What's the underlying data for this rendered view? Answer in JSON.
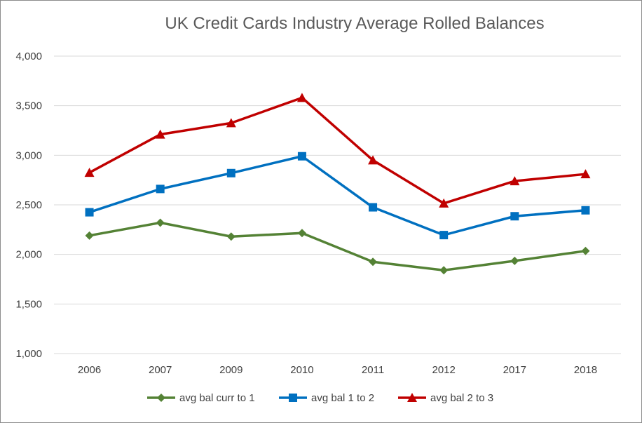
{
  "chart_data": {
    "type": "line",
    "title": "UK Credit Cards Industry Average Rolled Balances",
    "xlabel": "",
    "ylabel": "",
    "categories": [
      "2006",
      "2007",
      "2009",
      "2010",
      "2011",
      "2012",
      "2017",
      "2018"
    ],
    "ylim": [
      1000,
      4000
    ],
    "yticks": [
      1000,
      1500,
      2000,
      2500,
      3000,
      3500,
      4000
    ],
    "ytick_labels": [
      "1,000",
      "1,500",
      "2,000",
      "2,500",
      "3,000",
      "3,500",
      "4,000"
    ],
    "grid": true,
    "legend_position": "bottom",
    "series": [
      {
        "name": "avg bal curr to 1",
        "color": "#548235",
        "marker": "diamond",
        "values": [
          2190,
          2320,
          2180,
          2215,
          1925,
          1840,
          1935,
          2035
        ]
      },
      {
        "name": "avg bal 1 to 2",
        "color": "#0070c0",
        "marker": "square",
        "values": [
          2425,
          2660,
          2820,
          2990,
          2475,
          2195,
          2385,
          2445
        ]
      },
      {
        "name": "avg bal 2 to 3",
        "color": "#c00000",
        "marker": "triangle",
        "values": [
          2825,
          3210,
          3325,
          3580,
          2950,
          2515,
          2740,
          2810
        ]
      }
    ]
  }
}
